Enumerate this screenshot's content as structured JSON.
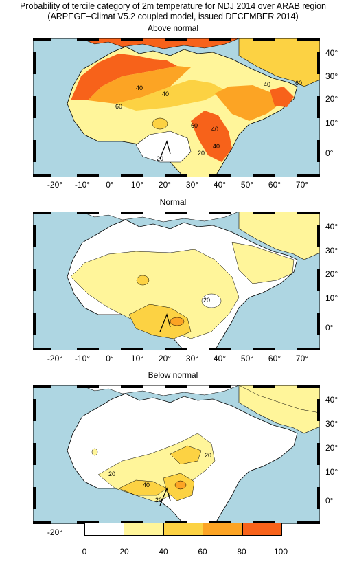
{
  "title": {
    "line1": "Probability of tercile category of 2m temperature for NDJ 2014 over ARAB region",
    "line2": "(ARPEGE–Climat V5.2 coupled model, issued DECEMBER 2014)"
  },
  "panels": [
    {
      "title": "Above normal",
      "contour_labels": [
        "60",
        "40",
        "60",
        "40",
        "40",
        "20",
        "40",
        "20",
        "60",
        "40"
      ]
    },
    {
      "title": "Normal",
      "contour_labels": [
        "20"
      ]
    },
    {
      "title": "Below normal",
      "contour_labels": [
        "20",
        "40",
        "20",
        "20"
      ]
    }
  ],
  "lat_ticks": [
    "40°",
    "30°",
    "20°",
    "10°",
    "0°"
  ],
  "lon_ticks": [
    "-20°",
    "-10°",
    "0°",
    "10°",
    "20°",
    "30°",
    "40°",
    "50°",
    "60°",
    "70°"
  ],
  "colorbar": {
    "ticks": [
      "0",
      "20",
      "40",
      "60",
      "80",
      "100"
    ],
    "colors": [
      "#ffffff",
      "#fff59a",
      "#fdd243",
      "#fca424",
      "#f7621a"
    ]
  },
  "colors": {
    "ocean": "#aed6e2",
    "land_low": "#ffffff"
  }
}
